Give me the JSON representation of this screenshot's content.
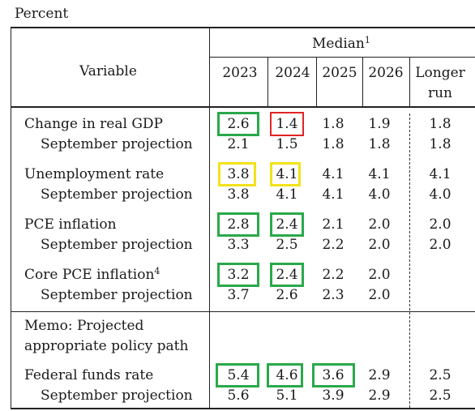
{
  "unit_label": "Percent",
  "header": {
    "variable": "Variable",
    "median": "Median",
    "median_note": "1",
    "years": [
      "2023",
      "2024",
      "2025",
      "2026"
    ],
    "longer_run_line1": "Longer",
    "longer_run_line2": "run"
  },
  "rows": [
    {
      "label": "Change in real GDP",
      "note": "",
      "values": [
        "2.6",
        "1.4",
        "1.8",
        "1.9",
        "1.8"
      ],
      "highlights": [
        "green",
        "red",
        "",
        "",
        ""
      ]
    },
    {
      "label": "September projection",
      "note": "",
      "values": [
        "2.1",
        "1.5",
        "1.8",
        "1.8",
        "1.8"
      ],
      "highlights": [
        "",
        "",
        "",
        "",
        ""
      ]
    },
    {
      "label": "Unemployment rate",
      "note": "",
      "values": [
        "3.8",
        "4.1",
        "4.1",
        "4.1",
        "4.1"
      ],
      "highlights": [
        "yellow",
        "yellow",
        "",
        "",
        ""
      ]
    },
    {
      "label": "September projection",
      "note": "",
      "values": [
        "3.8",
        "4.1",
        "4.1",
        "4.0",
        "4.0"
      ],
      "highlights": [
        "",
        "",
        "",
        "",
        ""
      ]
    },
    {
      "label": "PCE inflation",
      "note": "",
      "values": [
        "2.8",
        "2.4",
        "2.1",
        "2.0",
        "2.0"
      ],
      "highlights": [
        "green",
        "green",
        "",
        "",
        ""
      ]
    },
    {
      "label": "September projection",
      "note": "",
      "values": [
        "3.3",
        "2.5",
        "2.2",
        "2.0",
        "2.0"
      ],
      "highlights": [
        "",
        "",
        "",
        "",
        ""
      ]
    },
    {
      "label": "Core PCE inflation",
      "note": "4",
      "values": [
        "3.2",
        "2.4",
        "2.2",
        "2.0",
        ""
      ],
      "highlights": [
        "green",
        "green",
        "",
        "",
        ""
      ]
    },
    {
      "label": "September projection",
      "note": "",
      "values": [
        "3.7",
        "2.6",
        "2.3",
        "2.0",
        ""
      ],
      "highlights": [
        "",
        "",
        "",
        "",
        ""
      ]
    }
  ],
  "memo": {
    "line1": "Memo: Projected",
    "line2": "appropriate policy path"
  },
  "memo_rows": [
    {
      "label": "Federal funds rate",
      "values": [
        "5.4",
        "4.6",
        "3.6",
        "2.9",
        "2.5"
      ],
      "highlights": [
        "green",
        "green",
        "green",
        "",
        ""
      ]
    },
    {
      "label": "September projection",
      "values": [
        "5.6",
        "5.1",
        "3.9",
        "2.9",
        "2.5"
      ],
      "highlights": [
        "",
        "",
        "",
        "",
        ""
      ]
    }
  ],
  "colors": {
    "green_box": "#2aa84a",
    "yellow_box": "#f2e21a",
    "red_box": "#e02424"
  }
}
